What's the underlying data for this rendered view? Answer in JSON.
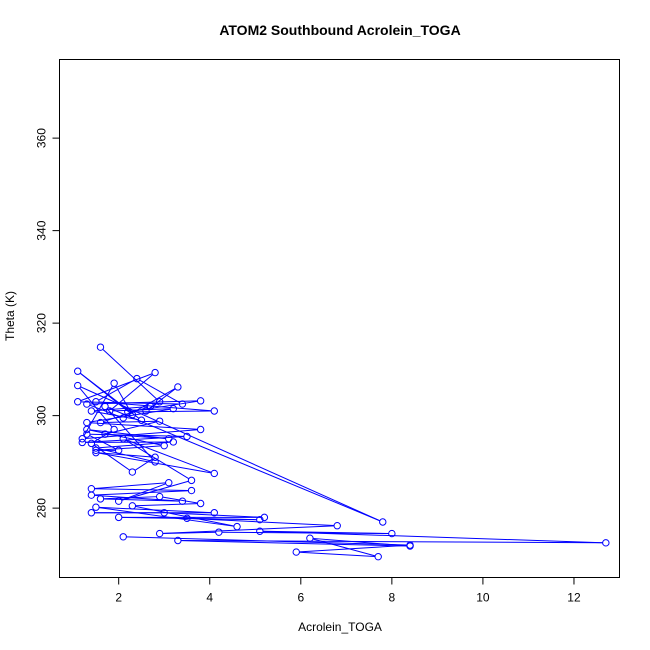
{
  "chart_data": {
    "type": "scatter",
    "title": "ATOM2 Southbound Acrolein_TOGA",
    "xlabel": "Acrolein_TOGA",
    "ylabel": "Theta (K)",
    "xlim": [
      0.7,
      13.0
    ],
    "ylim": [
      265.0,
      377.0
    ],
    "xticks": [
      2,
      4,
      6,
      8,
      10,
      12
    ],
    "yticks": [
      280,
      300,
      320,
      340,
      360
    ],
    "connected": true,
    "color": "#0000ff",
    "marker": "open-circle",
    "points": [
      {
        "x": 1.6,
        "y": 314.8
      },
      {
        "x": 2.9,
        "y": 303.0
      },
      {
        "x": 2.6,
        "y": 301.0
      },
      {
        "x": 3.3,
        "y": 306.2
      },
      {
        "x": 2.1,
        "y": 299.5
      },
      {
        "x": 1.3,
        "y": 302.5
      },
      {
        "x": 3.8,
        "y": 303.2
      },
      {
        "x": 2.2,
        "y": 300.8
      },
      {
        "x": 4.1,
        "y": 301.0
      },
      {
        "x": 1.5,
        "y": 303.0
      },
      {
        "x": 2.4,
        "y": 308.0
      },
      {
        "x": 3.4,
        "y": 302.5
      },
      {
        "x": 1.1,
        "y": 303.0
      },
      {
        "x": 2.8,
        "y": 309.3
      },
      {
        "x": 1.8,
        "y": 301.0
      },
      {
        "x": 3.2,
        "y": 301.5
      },
      {
        "x": 1.3,
        "y": 298.5
      },
      {
        "x": 3.8,
        "y": 297.0
      },
      {
        "x": 1.2,
        "y": 295.0
      },
      {
        "x": 1.9,
        "y": 307.0
      },
      {
        "x": 2.3,
        "y": 300.2
      },
      {
        "x": 1.1,
        "y": 309.6
      },
      {
        "x": 2.5,
        "y": 299.0
      },
      {
        "x": 1.4,
        "y": 301.0
      },
      {
        "x": 2.7,
        "y": 302.0
      },
      {
        "x": 1.6,
        "y": 298.5
      },
      {
        "x": 2.9,
        "y": 298.8
      },
      {
        "x": 1.7,
        "y": 296.0
      },
      {
        "x": 3.1,
        "y": 295.0
      },
      {
        "x": 1.3,
        "y": 297.0
      },
      {
        "x": 3.0,
        "y": 293.5
      },
      {
        "x": 1.5,
        "y": 292.5
      },
      {
        "x": 2.0,
        "y": 292.5
      },
      {
        "x": 1.3,
        "y": 296.0
      },
      {
        "x": 3.5,
        "y": 295.5
      },
      {
        "x": 1.2,
        "y": 294.2
      },
      {
        "x": 3.2,
        "y": 294.3
      },
      {
        "x": 1.5,
        "y": 293.0
      },
      {
        "x": 2.8,
        "y": 290.0
      },
      {
        "x": 1.7,
        "y": 302.0
      },
      {
        "x": 7.8,
        "y": 277.0
      },
      {
        "x": 1.1,
        "y": 306.5
      },
      {
        "x": 1.9,
        "y": 297.0
      },
      {
        "x": 1.4,
        "y": 294.0
      },
      {
        "x": 2.3,
        "y": 287.8
      },
      {
        "x": 2.8,
        "y": 291.0
      },
      {
        "x": 1.5,
        "y": 292.0
      },
      {
        "x": 4.1,
        "y": 287.5
      },
      {
        "x": 2.1,
        "y": 295.0
      },
      {
        "x": 3.6,
        "y": 286.0
      },
      {
        "x": 2.0,
        "y": 281.5
      },
      {
        "x": 3.1,
        "y": 285.5
      },
      {
        "x": 1.4,
        "y": 284.2
      },
      {
        "x": 3.6,
        "y": 283.8
      },
      {
        "x": 1.4,
        "y": 282.8
      },
      {
        "x": 3.4,
        "y": 281.5
      },
      {
        "x": 1.6,
        "y": 282.0
      },
      {
        "x": 2.9,
        "y": 282.5
      },
      {
        "x": 3.8,
        "y": 281.0
      },
      {
        "x": 2.3,
        "y": 280.5
      },
      {
        "x": 4.6,
        "y": 276.0
      },
      {
        "x": 1.5,
        "y": 280.2
      },
      {
        "x": 4.1,
        "y": 279.0
      },
      {
        "x": 1.4,
        "y": 279.0
      },
      {
        "x": 3.0,
        "y": 279.0
      },
      {
        "x": 5.2,
        "y": 278.0
      },
      {
        "x": 2.0,
        "y": 278.0
      },
      {
        "x": 5.1,
        "y": 277.5
      },
      {
        "x": 3.5,
        "y": 277.8
      },
      {
        "x": 6.8,
        "y": 276.2
      },
      {
        "x": 2.9,
        "y": 274.5
      },
      {
        "x": 4.2,
        "y": 274.8
      },
      {
        "x": 8.0,
        "y": 274.5
      },
      {
        "x": 5.1,
        "y": 275.0
      },
      {
        "x": 12.7,
        "y": 272.5
      },
      {
        "x": 3.3,
        "y": 273.0
      },
      {
        "x": 8.4,
        "y": 271.8
      },
      {
        "x": 6.2,
        "y": 273.5
      },
      {
        "x": 7.7,
        "y": 269.5
      },
      {
        "x": 5.9,
        "y": 270.5
      },
      {
        "x": 8.4,
        "y": 272.0
      },
      {
        "x": 2.1,
        "y": 273.8
      }
    ]
  }
}
